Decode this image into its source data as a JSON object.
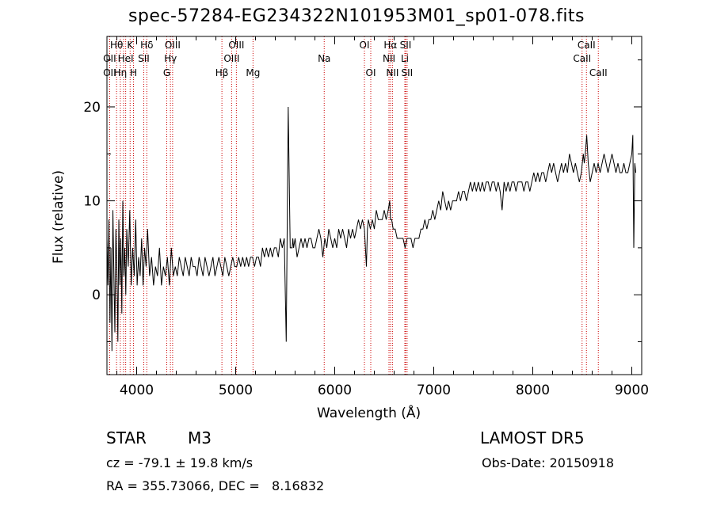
{
  "header": {
    "title": "spec-57284-EG234322N101953M01_sp01-078.fits"
  },
  "info": {
    "class_label": "STAR",
    "subclass": "M3",
    "survey": "LAMOST DR5",
    "redshift_text": "cz = -79.1 ± 19.8 km/s",
    "obs_date": "Obs-Date: 20150918",
    "coords_text": "RA = 355.73066, DEC =   8.16832"
  },
  "chart_data": {
    "type": "line",
    "title": "spec-57284-EG234322N101953M01_sp01-078.fits",
    "xlabel": "Wavelength (Å)",
    "ylabel": "Flux (relative)",
    "xlim": [
      3700,
      9100
    ],
    "ylim": [
      -8.5,
      27.5
    ],
    "x_ticks": [
      4000,
      5000,
      6000,
      7000,
      8000,
      9000
    ],
    "y_ticks": [
      0,
      10,
      20
    ],
    "grid": false,
    "line_color": "#000000",
    "marker_color": "#cc0000",
    "spectrum": {
      "x": [
        3700,
        3710,
        3720,
        3730,
        3740,
        3750,
        3760,
        3770,
        3780,
        3790,
        3800,
        3810,
        3820,
        3830,
        3840,
        3850,
        3860,
        3870,
        3880,
        3890,
        3900,
        3915,
        3930,
        3945,
        3960,
        3975,
        3990,
        4005,
        4020,
        4035,
        4050,
        4065,
        4080,
        4095,
        4110,
        4130,
        4150,
        4170,
        4190,
        4210,
        4230,
        4250,
        4270,
        4290,
        4310,
        4330,
        4350,
        4370,
        4390,
        4410,
        4430,
        4450,
        4470,
        4490,
        4510,
        4530,
        4550,
        4570,
        4590,
        4610,
        4630,
        4650,
        4670,
        4690,
        4710,
        4730,
        4750,
        4770,
        4790,
        4810,
        4830,
        4850,
        4870,
        4890,
        4910,
        4930,
        4950,
        4970,
        4990,
        5010,
        5030,
        5050,
        5070,
        5090,
        5110,
        5130,
        5150,
        5170,
        5190,
        5210,
        5230,
        5250,
        5270,
        5290,
        5310,
        5330,
        5350,
        5370,
        5390,
        5410,
        5430,
        5450,
        5470,
        5490,
        5510,
        5530,
        5550,
        5570,
        5577,
        5585,
        5600,
        5620,
        5640,
        5660,
        5680,
        5700,
        5720,
        5740,
        5760,
        5780,
        5800,
        5820,
        5840,
        5860,
        5880,
        5900,
        5920,
        5940,
        5960,
        5980,
        6000,
        6020,
        6040,
        6060,
        6080,
        6100,
        6120,
        6140,
        6160,
        6180,
        6200,
        6220,
        6240,
        6260,
        6280,
        6300,
        6320,
        6330,
        6340,
        6360,
        6380,
        6400,
        6420,
        6440,
        6460,
        6480,
        6500,
        6520,
        6540,
        6555,
        6563,
        6575,
        6590,
        6610,
        6630,
        6650,
        6670,
        6690,
        6710,
        6730,
        6750,
        6770,
        6790,
        6810,
        6830,
        6850,
        6870,
        6890,
        6910,
        6930,
        6950,
        6970,
        6990,
        7010,
        7030,
        7050,
        7070,
        7090,
        7110,
        7130,
        7150,
        7170,
        7190,
        7210,
        7230,
        7250,
        7270,
        7290,
        7310,
        7330,
        7350,
        7370,
        7390,
        7410,
        7430,
        7450,
        7470,
        7490,
        7510,
        7530,
        7550,
        7570,
        7590,
        7610,
        7630,
        7650,
        7670,
        7690,
        7710,
        7730,
        7750,
        7770,
        7790,
        7810,
        7830,
        7850,
        7870,
        7890,
        7910,
        7930,
        7950,
        7970,
        7990,
        8010,
        8030,
        8050,
        8070,
        8090,
        8110,
        8130,
        8150,
        8170,
        8190,
        8210,
        8230,
        8250,
        8270,
        8290,
        8310,
        8330,
        8350,
        8370,
        8390,
        8410,
        8430,
        8450,
        8470,
        8490,
        8500,
        8510,
        8520,
        8530,
        8545,
        8560,
        8580,
        8600,
        8620,
        8640,
        8660,
        8680,
        8700,
        8720,
        8740,
        8760,
        8780,
        8800,
        8820,
        8840,
        8860,
        8880,
        8900,
        8920,
        8940,
        8960,
        8980,
        9000,
        9010,
        9020,
        9030,
        9040
      ],
      "y": [
        6,
        1,
        8,
        -3,
        5,
        -6,
        9,
        2,
        -4,
        7,
        3,
        -5,
        8,
        1,
        6,
        -2,
        10,
        2,
        5,
        0,
        7,
        3,
        9,
        1,
        5,
        2,
        8,
        1,
        4,
        2,
        6,
        1,
        5,
        3,
        7,
        2,
        4,
        1,
        3,
        2,
        5,
        1,
        3,
        2,
        4,
        1,
        5,
        2,
        3,
        2,
        4,
        3,
        2,
        4,
        3,
        2,
        4,
        3,
        3,
        2,
        4,
        3,
        2,
        4,
        3,
        2,
        3,
        4,
        2,
        3,
        4,
        3,
        2,
        4,
        3,
        2,
        3,
        4,
        3,
        3,
        4,
        3,
        4,
        3,
        4,
        3,
        4,
        4,
        3,
        4,
        4,
        3,
        5,
        4,
        5,
        4,
        5,
        4,
        5,
        5,
        4,
        6,
        5,
        6,
        -5,
        20,
        5,
        5,
        6,
        5,
        6,
        4,
        5,
        6,
        5,
        6,
        5,
        6,
        6,
        5,
        5,
        6,
        7,
        6,
        4,
        6,
        5,
        7,
        6,
        5,
        6,
        5,
        7,
        6,
        7,
        6,
        5,
        7,
        6,
        7,
        6,
        7,
        8,
        7,
        8,
        7,
        3,
        7,
        8,
        7,
        8,
        7,
        9,
        8,
        8,
        8,
        9,
        8,
        9,
        10,
        8,
        8,
        7,
        7,
        6,
        6,
        6,
        6,
        5,
        6,
        6,
        6,
        5,
        6,
        6,
        6,
        7,
        7,
        8,
        7,
        8,
        8,
        9,
        8,
        9,
        10,
        9,
        11,
        10,
        9,
        10,
        9,
        10,
        10,
        10,
        11,
        10,
        11,
        11,
        10,
        11,
        12,
        11,
        12,
        11,
        12,
        11,
        12,
        11,
        12,
        12,
        11,
        12,
        12,
        11,
        12,
        11,
        9,
        12,
        11,
        12,
        11,
        12,
        12,
        11,
        12,
        12,
        12,
        11,
        12,
        12,
        11,
        12,
        13,
        12,
        13,
        12,
        13,
        13,
        12,
        13,
        14,
        13,
        14,
        13,
        12,
        13,
        14,
        13,
        14,
        13,
        15,
        14,
        13,
        14,
        13,
        12,
        13,
        14,
        15,
        14,
        15,
        17,
        14,
        12,
        13,
        14,
        13,
        14,
        13,
        14,
        15,
        14,
        13,
        14,
        15,
        14,
        13,
        14,
        13,
        13,
        14,
        13,
        13,
        14,
        15,
        17,
        5,
        14,
        13
      ]
    },
    "markers": [
      {
        "wave": 3797,
        "label": "Hθ",
        "row": 0
      },
      {
        "wave": 3727,
        "label": "OII",
        "row": 1
      },
      {
        "wave": 3727,
        "label": "OII",
        "row": 2
      },
      {
        "wave": 3835,
        "label": "Hη",
        "row": 2
      },
      {
        "wave": 3868,
        "label": "",
        "row": 0
      },
      {
        "wave": 3889,
        "label": "HeI",
        "row": 1
      },
      {
        "wave": 3934,
        "label": "K",
        "row": 0
      },
      {
        "wave": 3968,
        "label": "H",
        "row": 2
      },
      {
        "wave": 4072,
        "label": "SII",
        "row": 1
      },
      {
        "wave": 4102,
        "label": "Hδ",
        "row": 0
      },
      {
        "wave": 4304,
        "label": "G",
        "row": 2
      },
      {
        "wave": 4341,
        "label": "Hγ",
        "row": 1
      },
      {
        "wave": 4363,
        "label": "OIII",
        "row": 0
      },
      {
        "wave": 4861,
        "label": "Hβ",
        "row": 2
      },
      {
        "wave": 4959,
        "label": "OIII",
        "row": 1
      },
      {
        "wave": 5007,
        "label": "OIII",
        "row": 0
      },
      {
        "wave": 5175,
        "label": "Mg",
        "row": 2
      },
      {
        "wave": 5894,
        "label": "Na",
        "row": 1
      },
      {
        "wave": 6300,
        "label": "OI",
        "row": 0
      },
      {
        "wave": 6364,
        "label": "OI",
        "row": 2
      },
      {
        "wave": 6548,
        "label": "NII",
        "row": 1
      },
      {
        "wave": 6563,
        "label": "Hα",
        "row": 0
      },
      {
        "wave": 6583,
        "label": "NII",
        "row": 2
      },
      {
        "wave": 6708,
        "label": "Li",
        "row": 1
      },
      {
        "wave": 6716,
        "label": "SII",
        "row": 0
      },
      {
        "wave": 6731,
        "label": "SII",
        "row": 2
      },
      {
        "wave": 8498,
        "label": "CaII",
        "row": 1
      },
      {
        "wave": 8542,
        "label": "CaII",
        "row": 0
      },
      {
        "wave": 8662,
        "label": "CaII",
        "row": 2
      }
    ]
  }
}
